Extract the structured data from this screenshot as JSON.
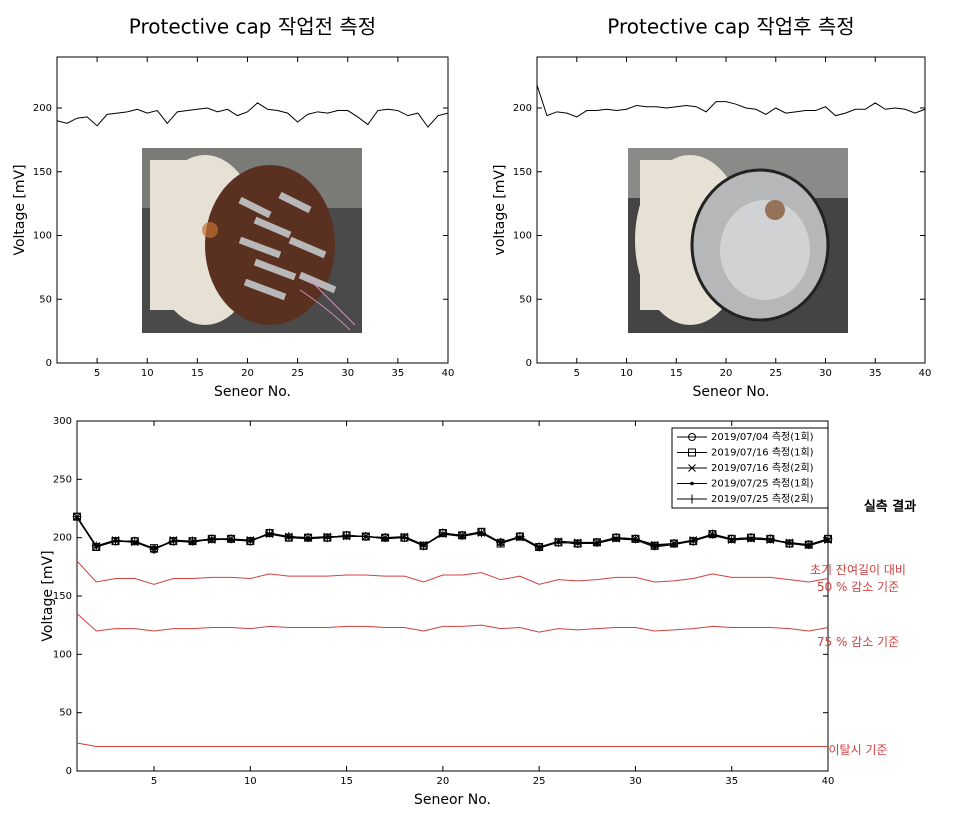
{
  "chart_data": [
    {
      "type": "line",
      "title": "Protective cap 작업전 측정",
      "ylabel": "Voltage [mV]",
      "xlabel": "Seneor No.",
      "xlim": [
        1,
        40
      ],
      "ylim": [
        0,
        240
      ],
      "xticks": [
        5,
        10,
        15,
        20,
        25,
        30,
        35,
        40
      ],
      "yticks": [
        0,
        50,
        100,
        150,
        200
      ],
      "x": [
        1,
        2,
        3,
        4,
        5,
        6,
        7,
        8,
        9,
        10,
        11,
        12,
        13,
        14,
        15,
        16,
        17,
        18,
        19,
        20,
        21,
        22,
        23,
        24,
        25,
        26,
        27,
        28,
        29,
        30,
        31,
        32,
        33,
        34,
        35,
        36,
        37,
        38,
        39,
        40
      ],
      "series": [
        {
          "color": "#000000",
          "values": [
            190,
            188,
            192,
            193,
            186,
            195,
            196,
            197,
            199,
            196,
            198,
            188,
            197,
            198,
            199,
            200,
            197,
            199,
            194,
            197,
            204,
            199,
            198,
            196,
            189,
            195,
            197,
            196,
            198,
            198,
            193,
            187,
            198,
            199,
            198,
            194,
            196,
            185,
            194,
            196
          ]
        }
      ]
    },
    {
      "type": "line",
      "title": "Protective cap 작업후 측정",
      "ylabel": "voltage [mV]",
      "xlabel": "Seneor No.",
      "xlim": [
        1,
        40
      ],
      "ylim": [
        0,
        240
      ],
      "xticks": [
        5,
        10,
        15,
        20,
        25,
        30,
        35,
        40
      ],
      "yticks": [
        0,
        50,
        100,
        150,
        200
      ],
      "x": [
        1,
        2,
        3,
        4,
        5,
        6,
        7,
        8,
        9,
        10,
        11,
        12,
        13,
        14,
        15,
        16,
        17,
        18,
        19,
        20,
        21,
        22,
        23,
        24,
        25,
        26,
        27,
        28,
        29,
        30,
        31,
        32,
        33,
        34,
        35,
        36,
        37,
        38,
        39,
        40
      ],
      "series": [
        {
          "color": "#000000",
          "values": [
            218,
            194,
            197,
            196,
            193,
            198,
            198,
            199,
            198,
            199,
            202,
            201,
            201,
            200,
            201,
            202,
            201,
            197,
            205,
            205,
            203,
            200,
            199,
            195,
            200,
            196,
            197,
            198,
            198,
            201,
            194,
            196,
            199,
            199,
            204,
            199,
            200,
            199,
            196,
            199
          ]
        }
      ]
    },
    {
      "type": "line",
      "ylabel": "Voltage [mV]",
      "xlabel": "Seneor No.",
      "annotation": "실측 결과",
      "xlim": [
        1,
        40
      ],
      "ylim": [
        0,
        300
      ],
      "xticks": [
        5,
        10,
        15,
        20,
        25,
        30,
        35,
        40
      ],
      "yticks": [
        0,
        50,
        100,
        150,
        200,
        250,
        300
      ],
      "x": [
        1,
        2,
        3,
        4,
        5,
        6,
        7,
        8,
        9,
        10,
        11,
        12,
        13,
        14,
        15,
        16,
        17,
        18,
        19,
        20,
        21,
        22,
        23,
        24,
        25,
        26,
        27,
        28,
        29,
        30,
        31,
        32,
        33,
        34,
        35,
        36,
        37,
        38,
        39,
        40
      ],
      "series": [
        {
          "name": "2019/07/04 측정(1회)",
          "color": "#000000",
          "marker": "circle",
          "values": [
            218,
            192,
            197,
            197,
            190,
            197,
            197,
            199,
            199,
            197,
            204,
            200,
            200,
            200,
            202,
            201,
            200,
            200,
            193,
            204,
            202,
            205,
            196,
            201,
            192,
            196,
            195,
            196,
            200,
            199,
            193,
            195,
            197,
            203,
            199,
            200,
            199,
            195,
            194,
            199
          ]
        },
        {
          "name": "2019/07/16 측정(1회)",
          "color": "#000000",
          "marker": "square",
          "values": [
            218,
            192,
            197,
            197,
            191,
            197,
            197,
            199,
            199,
            197,
            204,
            200,
            200,
            200,
            202,
            201,
            200,
            200,
            193,
            204,
            202,
            205,
            195,
            201,
            192,
            196,
            195,
            196,
            200,
            199,
            193,
            195,
            197,
            203,
            199,
            200,
            199,
            195,
            194,
            199
          ]
        },
        {
          "name": "2019/07/16 측정(2회)",
          "color": "#000000",
          "marker": "x",
          "values": [
            218,
            193,
            198,
            196,
            190,
            198,
            197,
            198,
            199,
            198,
            203,
            201,
            200,
            201,
            201,
            201,
            200,
            201,
            194,
            203,
            202,
            204,
            196,
            200,
            192,
            197,
            196,
            196,
            199,
            199,
            194,
            195,
            198,
            203,
            198,
            199,
            198,
            196,
            194,
            198
          ]
        },
        {
          "name": "2019/07/25 측정(1회)",
          "color": "#000000",
          "marker": "dot",
          "values": [
            217,
            192,
            197,
            196,
            191,
            197,
            196,
            199,
            198,
            197,
            203,
            200,
            199,
            200,
            201,
            201,
            199,
            200,
            193,
            203,
            201,
            204,
            195,
            200,
            191,
            196,
            195,
            195,
            199,
            198,
            192,
            194,
            197,
            202,
            198,
            199,
            198,
            195,
            193,
            198
          ]
        },
        {
          "name": "2019/07/25 측정(2회)",
          "color": "#000000",
          "marker": "plus",
          "values": [
            218,
            193,
            197,
            197,
            190,
            197,
            197,
            199,
            199,
            197,
            204,
            201,
            200,
            200,
            202,
            201,
            200,
            200,
            193,
            204,
            202,
            204,
            196,
            201,
            192,
            196,
            195,
            196,
            200,
            199,
            193,
            195,
            197,
            203,
            199,
            200,
            199,
            195,
            194,
            199
          ]
        }
      ],
      "reference_lines": [
        {
          "label": [
            "초기 잔여길이 대비",
            "50 % 감소 기준"
          ],
          "color": "#d04040",
          "values": [
            180,
            162,
            165,
            165,
            160,
            165,
            165,
            166,
            166,
            165,
            169,
            167,
            167,
            167,
            168,
            168,
            167,
            167,
            162,
            168,
            168,
            170,
            164,
            167,
            160,
            164,
            163,
            164,
            166,
            166,
            162,
            163,
            165,
            169,
            166,
            166,
            166,
            164,
            162,
            165
          ]
        },
        {
          "label": [
            "75 % 감소 기준"
          ],
          "color": "#d04040",
          "values": [
            135,
            120,
            122,
            122,
            120,
            122,
            122,
            123,
            123,
            122,
            124,
            123,
            123,
            123,
            124,
            124,
            123,
            123,
            120,
            124,
            124,
            125,
            122,
            123,
            119,
            122,
            121,
            122,
            123,
            123,
            120,
            121,
            122,
            124,
            123,
            123,
            123,
            122,
            120,
            123
          ]
        },
        {
          "label": [
            "이탈시 기준"
          ],
          "color": "#d04040",
          "values": [
            24,
            21,
            21,
            21,
            21,
            21,
            21,
            21,
            21,
            21,
            21,
            21,
            21,
            21,
            21,
            21,
            21,
            21,
            21,
            21,
            21,
            21,
            21,
            21,
            21,
            21,
            21,
            21,
            21,
            21,
            21,
            21,
            21,
            21,
            21,
            21,
            21,
            21,
            21,
            21
          ]
        }
      ]
    }
  ]
}
